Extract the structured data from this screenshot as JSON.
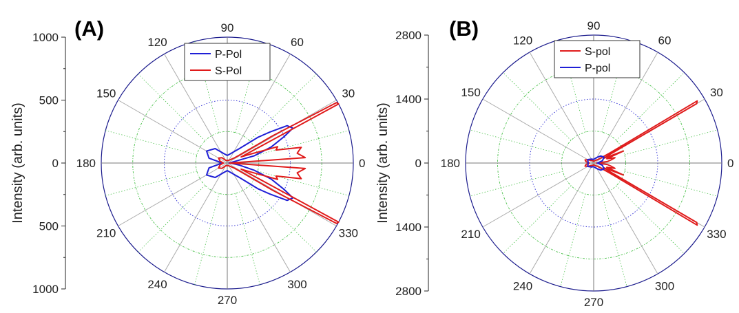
{
  "chart_data": [
    {
      "type": "polar-line",
      "panel_label": "(A)",
      "ylabel": "Intensity (arb. units)",
      "rlim": [
        0,
        1000
      ],
      "radial_ticks": [
        "1000",
        "500",
        "0",
        "500",
        "1000"
      ],
      "angle_ticks": [
        "0",
        "30",
        "60",
        "90",
        "120",
        "150",
        "180",
        "210",
        "240",
        "270",
        "300",
        "330"
      ],
      "legend_position": "top-right",
      "series": [
        {
          "name": "P-Pol",
          "color": "#1f1fd6",
          "theta": [
            0,
            10,
            15,
            20,
            25,
            28,
            32,
            36,
            40,
            50,
            70,
            90,
            110,
            130,
            150,
            165,
            180,
            195,
            210,
            230,
            250,
            270,
            290,
            310,
            320,
            324,
            328,
            332,
            335,
            340,
            345,
            350,
            355,
            360
          ],
          "r": [
            15,
            40,
            220,
            370,
            500,
            590,
            560,
            420,
            320,
            150,
            80,
            60,
            80,
            150,
            190,
            150,
            40,
            150,
            190,
            150,
            80,
            60,
            80,
            150,
            320,
            420,
            560,
            590,
            500,
            370,
            220,
            100,
            40,
            15
          ]
        },
        {
          "name": "S-Pol",
          "color": "#e01b1b",
          "theta": [
            0,
            4,
            8,
            12,
            15,
            18,
            21,
            24,
            27,
            28,
            29,
            31,
            33,
            36,
            45,
            60,
            90,
            120,
            135,
            150,
            165,
            180,
            195,
            210,
            225,
            240,
            270,
            300,
            315,
            324,
            327,
            329,
            331,
            332,
            333,
            336,
            339,
            342,
            345,
            348,
            352,
            356,
            360
          ],
          "r": [
            20,
            620,
            560,
            600,
            400,
            420,
            200,
            120,
            380,
            1000,
            990,
            420,
            120,
            70,
            40,
            25,
            20,
            25,
            60,
            80,
            60,
            30,
            60,
            80,
            60,
            25,
            20,
            25,
            40,
            70,
            120,
            420,
            990,
            1000,
            380,
            120,
            200,
            420,
            400,
            600,
            560,
            620,
            20
          ]
        }
      ]
    },
    {
      "type": "polar-line",
      "panel_label": "(B)",
      "ylabel": "Intensity (arb. units)",
      "rlim": [
        0,
        2800
      ],
      "radial_ticks": [
        "2800",
        "1400",
        "0",
        "1400",
        "2800"
      ],
      "angle_ticks": [
        "0",
        "30",
        "60",
        "90",
        "120",
        "150",
        "180",
        "210",
        "240",
        "270",
        "300",
        "330"
      ],
      "legend_position": "top-right",
      "series": [
        {
          "name": "S-pol",
          "color": "#e01b1b",
          "theta": [
            0,
            6,
            10,
            14,
            18,
            22,
            25,
            28,
            30,
            31,
            32,
            35,
            40,
            60,
            90,
            120,
            150,
            160,
            170,
            180,
            190,
            200,
            210,
            240,
            270,
            300,
            320,
            325,
            328,
            329,
            330,
            332,
            335,
            338,
            342,
            346,
            350,
            354,
            360
          ],
          "r": [
            60,
            300,
            380,
            480,
            300,
            700,
            250,
            400,
            2600,
            2640,
            420,
            200,
            120,
            60,
            40,
            60,
            140,
            200,
            170,
            90,
            170,
            200,
            140,
            60,
            40,
            60,
            120,
            200,
            420,
            2640,
            2600,
            400,
            250,
            700,
            300,
            480,
            380,
            300,
            60
          ]
        },
        {
          "name": "P-pol",
          "color": "#1f1fd6",
          "theta": [
            0,
            15,
            30,
            45,
            60,
            90,
            120,
            150,
            180,
            210,
            240,
            270,
            300,
            315,
            330,
            345,
            360
          ],
          "r": [
            80,
            200,
            260,
            220,
            140,
            80,
            100,
            150,
            120,
            150,
            100,
            80,
            140,
            220,
            260,
            200,
            80
          ]
        }
      ]
    }
  ]
}
